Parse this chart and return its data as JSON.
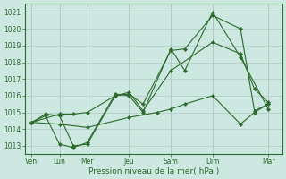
{
  "bg_color": "#cce8e0",
  "grid_color": "#b0c8c0",
  "line_color": "#2d6a2d",
  "marker_color": "#2d6a2d",
  "ylim": [
    1012.5,
    1021.5
  ],
  "yticks": [
    1013,
    1014,
    1015,
    1016,
    1017,
    1018,
    1019,
    1020,
    1021
  ],
  "xlabel": "Pression niveau de la mer( hPa )",
  "day_positions": [
    0,
    2,
    4,
    7,
    10,
    13,
    17
  ],
  "day_labels": [
    "Ven",
    "Lun",
    "Mer",
    "Jeu",
    "Sam",
    "Dim",
    "Mar"
  ],
  "xlim": [
    -0.5,
    18.0
  ],
  "series": [
    {
      "x": [
        0,
        1,
        2,
        3,
        4,
        6,
        7,
        8,
        10,
        11,
        13,
        15,
        17
      ],
      "y": [
        1014.4,
        1014.8,
        1013.1,
        1012.9,
        1013.2,
        1016.1,
        1016.0,
        1015.0,
        1018.8,
        1017.5,
        1021.0,
        1018.3,
        1015.2
      ]
    },
    {
      "x": [
        0,
        1,
        2,
        3,
        4,
        6,
        7,
        8,
        10,
        11,
        13,
        15,
        16,
        17
      ],
      "y": [
        1014.4,
        1014.9,
        1014.8,
        1013.0,
        1013.1,
        1016.0,
        1016.1,
        1015.5,
        1018.7,
        1018.8,
        1020.8,
        1020.0,
        1015.1,
        1015.5
      ]
    },
    {
      "x": [
        0,
        2,
        4,
        7,
        9,
        10,
        11,
        13,
        15,
        16,
        17
      ],
      "y": [
        1014.4,
        1014.3,
        1014.1,
        1014.7,
        1015.0,
        1015.2,
        1015.5,
        1016.0,
        1014.3,
        1015.0,
        1015.5
      ]
    },
    {
      "x": [
        0,
        2,
        3,
        4,
        6,
        7,
        8,
        10,
        13,
        15,
        16,
        17
      ],
      "y": [
        1014.4,
        1014.9,
        1014.9,
        1015.0,
        1016.0,
        1016.2,
        1015.1,
        1017.5,
        1019.2,
        1018.5,
        1016.4,
        1015.6
      ]
    }
  ]
}
